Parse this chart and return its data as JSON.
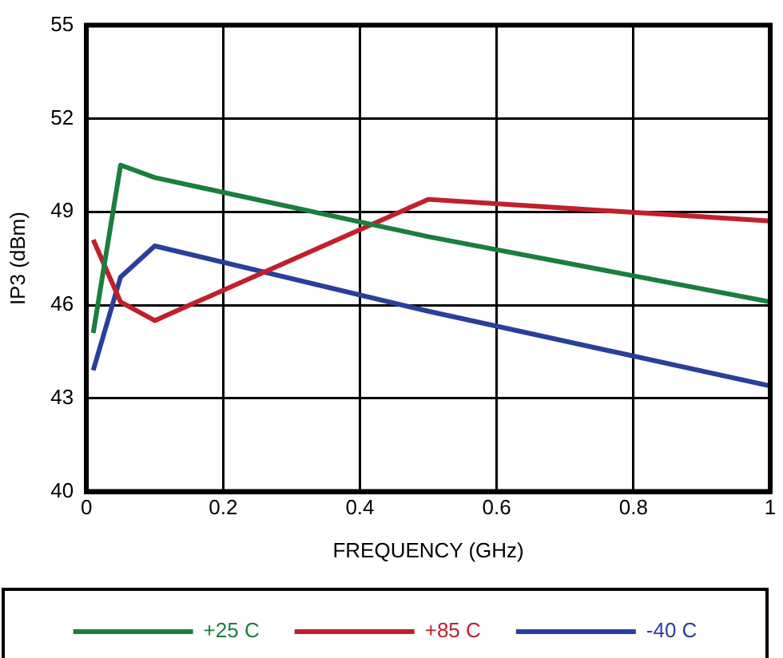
{
  "chart_data": {
    "type": "line",
    "xlabel": "FREQUENCY (GHz)",
    "ylabel": "IP3 (dBm)",
    "x": [
      0.01,
      0.05,
      0.1,
      0.5,
      1
    ],
    "xlim": [
      0,
      1
    ],
    "xticks": [
      0,
      0.2,
      0.4,
      0.6,
      0.8,
      1
    ],
    "ylim": [
      40,
      55
    ],
    "yticks": [
      40,
      43,
      46,
      49,
      52,
      55
    ],
    "grid": true,
    "legend": "bottom",
    "marker": "none",
    "line_style": "solid",
    "series": [
      {
        "name": "+25 C",
        "color": "#1a7f3c",
        "values": [
          45.1,
          50.5,
          50.1,
          48.2,
          46.1
        ]
      },
      {
        "name": "+85 C",
        "color": "#c0202a",
        "values": [
          48.1,
          46.1,
          45.5,
          49.4,
          48.7
        ]
      },
      {
        "name": "-40 C",
        "color": "#2a3f9a",
        "values": [
          43.9,
          46.9,
          47.9,
          45.8,
          43.4
        ]
      }
    ]
  }
}
